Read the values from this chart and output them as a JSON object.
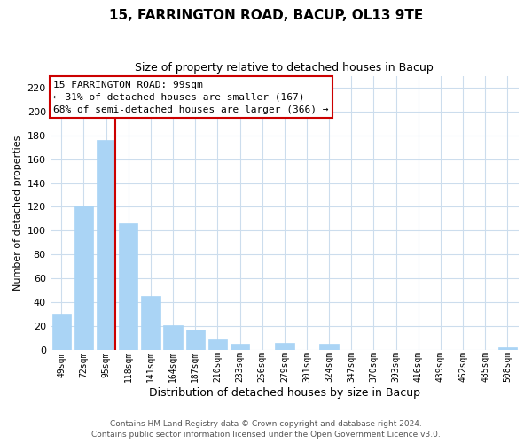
{
  "title": "15, FARRINGTON ROAD, BACUP, OL13 9TE",
  "subtitle": "Size of property relative to detached houses in Bacup",
  "xlabel": "Distribution of detached houses by size in Bacup",
  "ylabel": "Number of detached properties",
  "categories": [
    "49sqm",
    "72sqm",
    "95sqm",
    "118sqm",
    "141sqm",
    "164sqm",
    "187sqm",
    "210sqm",
    "233sqm",
    "256sqm",
    "279sqm",
    "301sqm",
    "324sqm",
    "347sqm",
    "370sqm",
    "393sqm",
    "416sqm",
    "439sqm",
    "462sqm",
    "485sqm",
    "508sqm"
  ],
  "values": [
    30,
    121,
    176,
    106,
    45,
    21,
    17,
    9,
    5,
    0,
    6,
    0,
    5,
    0,
    0,
    0,
    0,
    0,
    0,
    0,
    2
  ],
  "bar_color": "#aad4f5",
  "vline_bar_index": 2,
  "vline_color": "#cc0000",
  "ylim": [
    0,
    230
  ],
  "yticks": [
    0,
    20,
    40,
    60,
    80,
    100,
    120,
    140,
    160,
    180,
    200,
    220
  ],
  "annotation_title": "15 FARRINGTON ROAD: 99sqm",
  "annotation_line1": "← 31% of detached houses are smaller (167)",
  "annotation_line2": "68% of semi-detached houses are larger (366) →",
  "annotation_box_color": "#ffffff",
  "annotation_box_edge": "#cc0000",
  "footer1": "Contains HM Land Registry data © Crown copyright and database right 2024.",
  "footer2": "Contains public sector information licensed under the Open Government Licence v3.0.",
  "background_color": "#ffffff",
  "grid_color": "#ccdded",
  "title_fontsize": 11,
  "subtitle_fontsize": 9,
  "xlabel_fontsize": 9,
  "ylabel_fontsize": 8,
  "tick_fontsize": 8,
  "xtick_fontsize": 7,
  "ann_title_fontsize": 8,
  "ann_text_fontsize": 8,
  "footer_fontsize": 6.5
}
